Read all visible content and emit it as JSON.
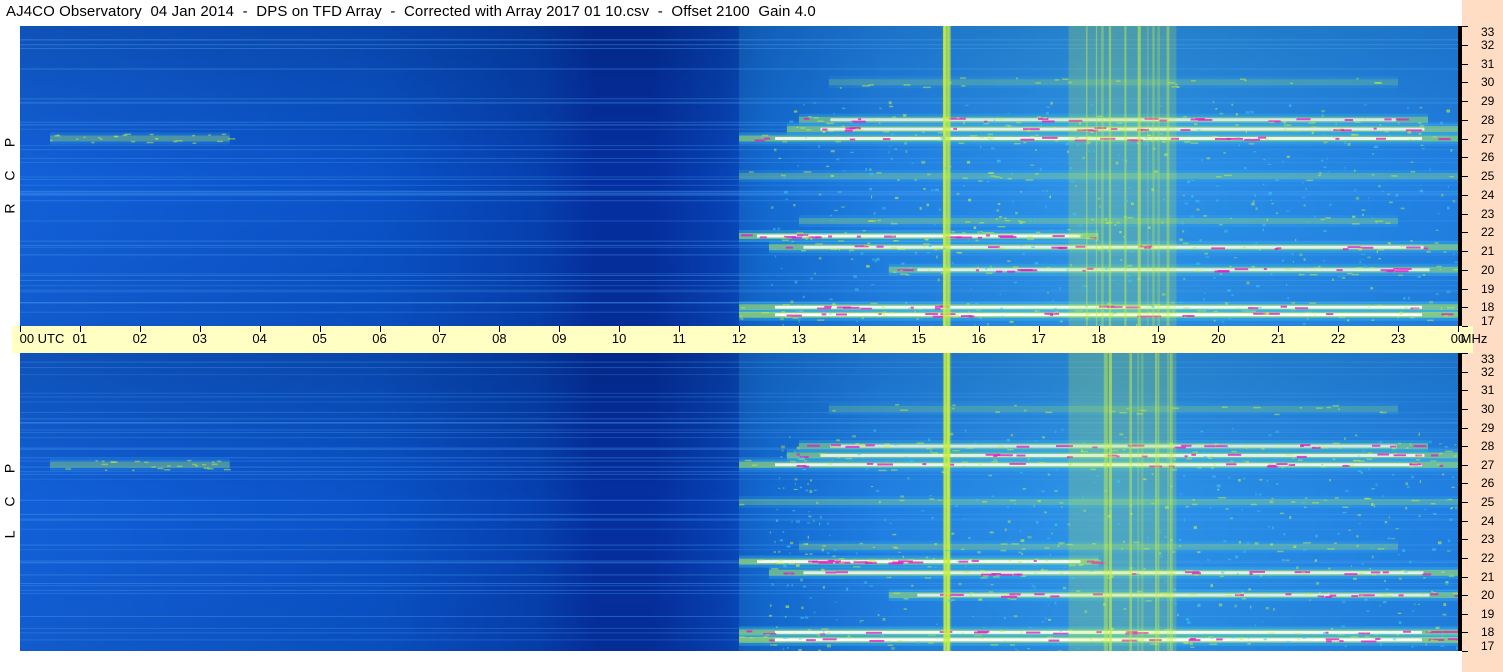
{
  "title": "AJ4CO Observatory  04 Jan 2014  -  DPS on TFD Array  -  Corrected with Array 2017 01 10.csv  -  Offset 2100  Gain 4.0",
  "top_panel": {
    "polarization_letters": [
      "P",
      "C",
      "R"
    ]
  },
  "bottom_panel": {
    "polarization_letters": [
      "P",
      "C",
      "L"
    ]
  },
  "time_axis": {
    "labels": [
      "00 UTC",
      "01",
      "02",
      "03",
      "04",
      "05",
      "06",
      "07",
      "08",
      "09",
      "10",
      "11",
      "12",
      "13",
      "14",
      "15",
      "16",
      "17",
      "18",
      "19",
      "20",
      "21",
      "22",
      "23",
      "00"
    ],
    "hours": [
      0,
      1,
      2,
      3,
      4,
      5,
      6,
      7,
      8,
      9,
      10,
      11,
      12,
      13,
      14,
      15,
      16,
      17,
      18,
      19,
      20,
      21,
      22,
      23,
      24
    ]
  },
  "frequency_axis": {
    "unit": "MHz",
    "labels": [
      "33",
      "32",
      "31",
      "30",
      "29",
      "28",
      "27",
      "26",
      "25",
      "24",
      "23",
      "22",
      "21",
      "20",
      "19",
      "18",
      "17"
    ],
    "range_mhz": [
      17,
      33
    ]
  },
  "colors": {
    "background_quiet": "#0a58d0",
    "night_trough": "#052fa0",
    "moderate": "#3fc8f0",
    "active": "#c8f040",
    "intense": "#ffffff",
    "peak": "#e020c0",
    "time_axis_bg": "#ffffc4",
    "freq_axis_bg": "#ffddc4"
  },
  "chart_data": {
    "type": "heatmap",
    "title": "AJ4CO Observatory  04 Jan 2014  -  DPS on TFD Array  -  Corrected with Array 2017 01 10.csv  -  Offset 2100  Gain 4.0",
    "x_unit": "UTC hour",
    "xlim": [
      0,
      24
    ],
    "y_unit": "MHz",
    "ylim": [
      17,
      33
    ],
    "panels": [
      "RCP",
      "LCP"
    ],
    "features": [
      {
        "kind": "interference_band",
        "freq_mhz": 27.0,
        "start_hour": 0.5,
        "end_hour": 3.5,
        "level": 0.55
      },
      {
        "kind": "interference_band",
        "freq_mhz": 27.0,
        "start_hour": 12.0,
        "end_hour": 24.0,
        "level": 0.85
      },
      {
        "kind": "interference_band",
        "freq_mhz": 27.5,
        "start_hour": 12.8,
        "end_hour": 24.0,
        "level": 0.8
      },
      {
        "kind": "interference_band",
        "freq_mhz": 28.0,
        "start_hour": 13.0,
        "end_hour": 23.5,
        "level": 0.7
      },
      {
        "kind": "interference_band",
        "freq_mhz": 21.8,
        "start_hour": 12.0,
        "end_hour": 18.0,
        "level": 0.9
      },
      {
        "kind": "interference_band",
        "freq_mhz": 21.2,
        "start_hour": 12.5,
        "end_hour": 24.0,
        "level": 0.8
      },
      {
        "kind": "interference_band",
        "freq_mhz": 20.0,
        "start_hour": 14.5,
        "end_hour": 24.0,
        "level": 0.75
      },
      {
        "kind": "interference_band",
        "freq_mhz": 18.0,
        "start_hour": 12.0,
        "end_hour": 24.0,
        "level": 0.9
      },
      {
        "kind": "interference_band",
        "freq_mhz": 17.6,
        "start_hour": 12.0,
        "end_hour": 24.0,
        "level": 1.0
      },
      {
        "kind": "interference_band",
        "freq_mhz": 25.0,
        "start_hour": 12.0,
        "end_hour": 24.0,
        "level": 0.45
      },
      {
        "kind": "interference_band",
        "freq_mhz": 22.6,
        "start_hour": 13.0,
        "end_hour": 23.0,
        "level": 0.45
      },
      {
        "kind": "interference_band",
        "freq_mhz": 30.0,
        "start_hour": 13.5,
        "end_hour": 23.0,
        "level": 0.35
      },
      {
        "kind": "vertical_burst",
        "start_hour": 17.5,
        "end_hour": 19.3,
        "level": 0.6
      },
      {
        "kind": "vertical_burst",
        "start_hour": 15.4,
        "end_hour": 15.5,
        "level": 0.5
      },
      {
        "kind": "night_trough",
        "center_hour": 8.7,
        "width_hours": 3.5,
        "level": -0.5
      }
    ]
  }
}
